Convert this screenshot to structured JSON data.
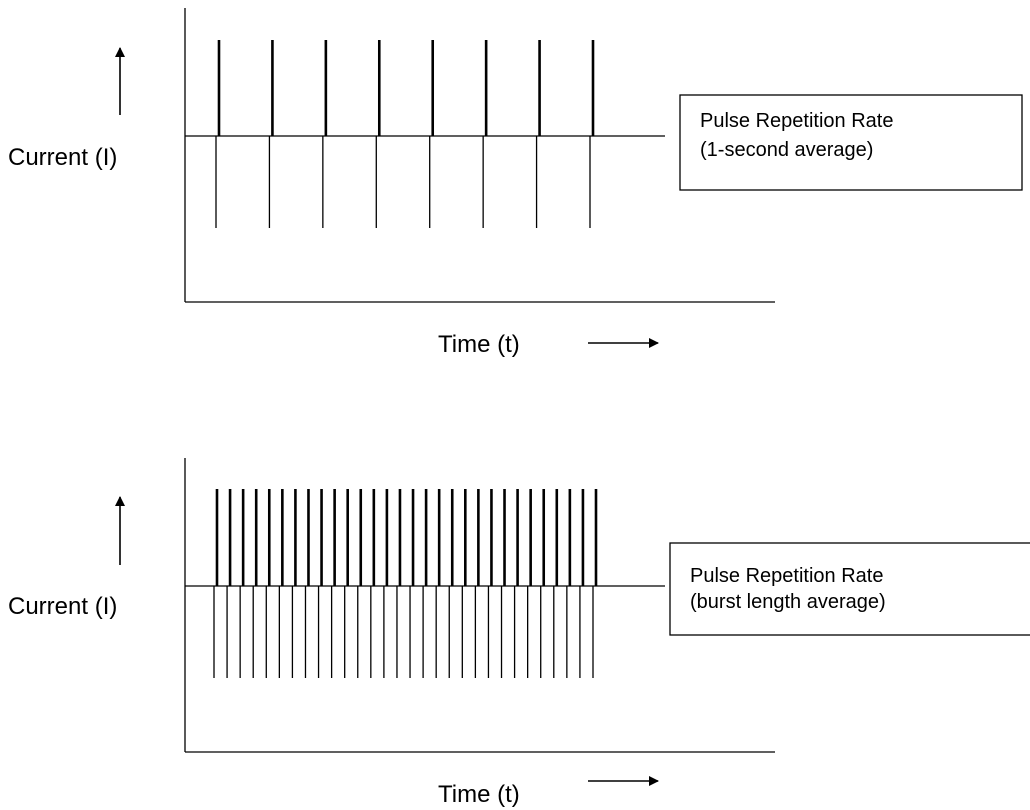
{
  "colors": {
    "ink": "#000000",
    "background": "#ffffff"
  },
  "figures": [
    {
      "id": "top",
      "y_axis_label": "Current (I)",
      "x_axis_label": "Time (t)",
      "y_arrow_icon": "up-arrow-icon",
      "x_arrow_icon": "right-arrow-icon",
      "box_label_line1": "Pulse Repetition Rate",
      "box_label_line2": "(1-second average)",
      "pulse_count": 8,
      "pulse_times": [
        0,
        1,
        2,
        3,
        4,
        5,
        6,
        7
      ]
    },
    {
      "id": "bottom",
      "y_axis_label": "Current (I)",
      "x_axis_label": "Time (t)",
      "y_arrow_icon": "up-arrow-icon",
      "x_arrow_icon": "right-arrow-icon",
      "box_label_line1": "Pulse Repetition Rate",
      "box_label_line2": "(burst length average)",
      "pulse_count": 30,
      "pulse_times": [
        0,
        1,
        2,
        3,
        4,
        5,
        6,
        7,
        8,
        9,
        10,
        11,
        12,
        13,
        14,
        15,
        16,
        17,
        18,
        19,
        20,
        21,
        22,
        23,
        24,
        25,
        26,
        27,
        28,
        29
      ]
    }
  ]
}
